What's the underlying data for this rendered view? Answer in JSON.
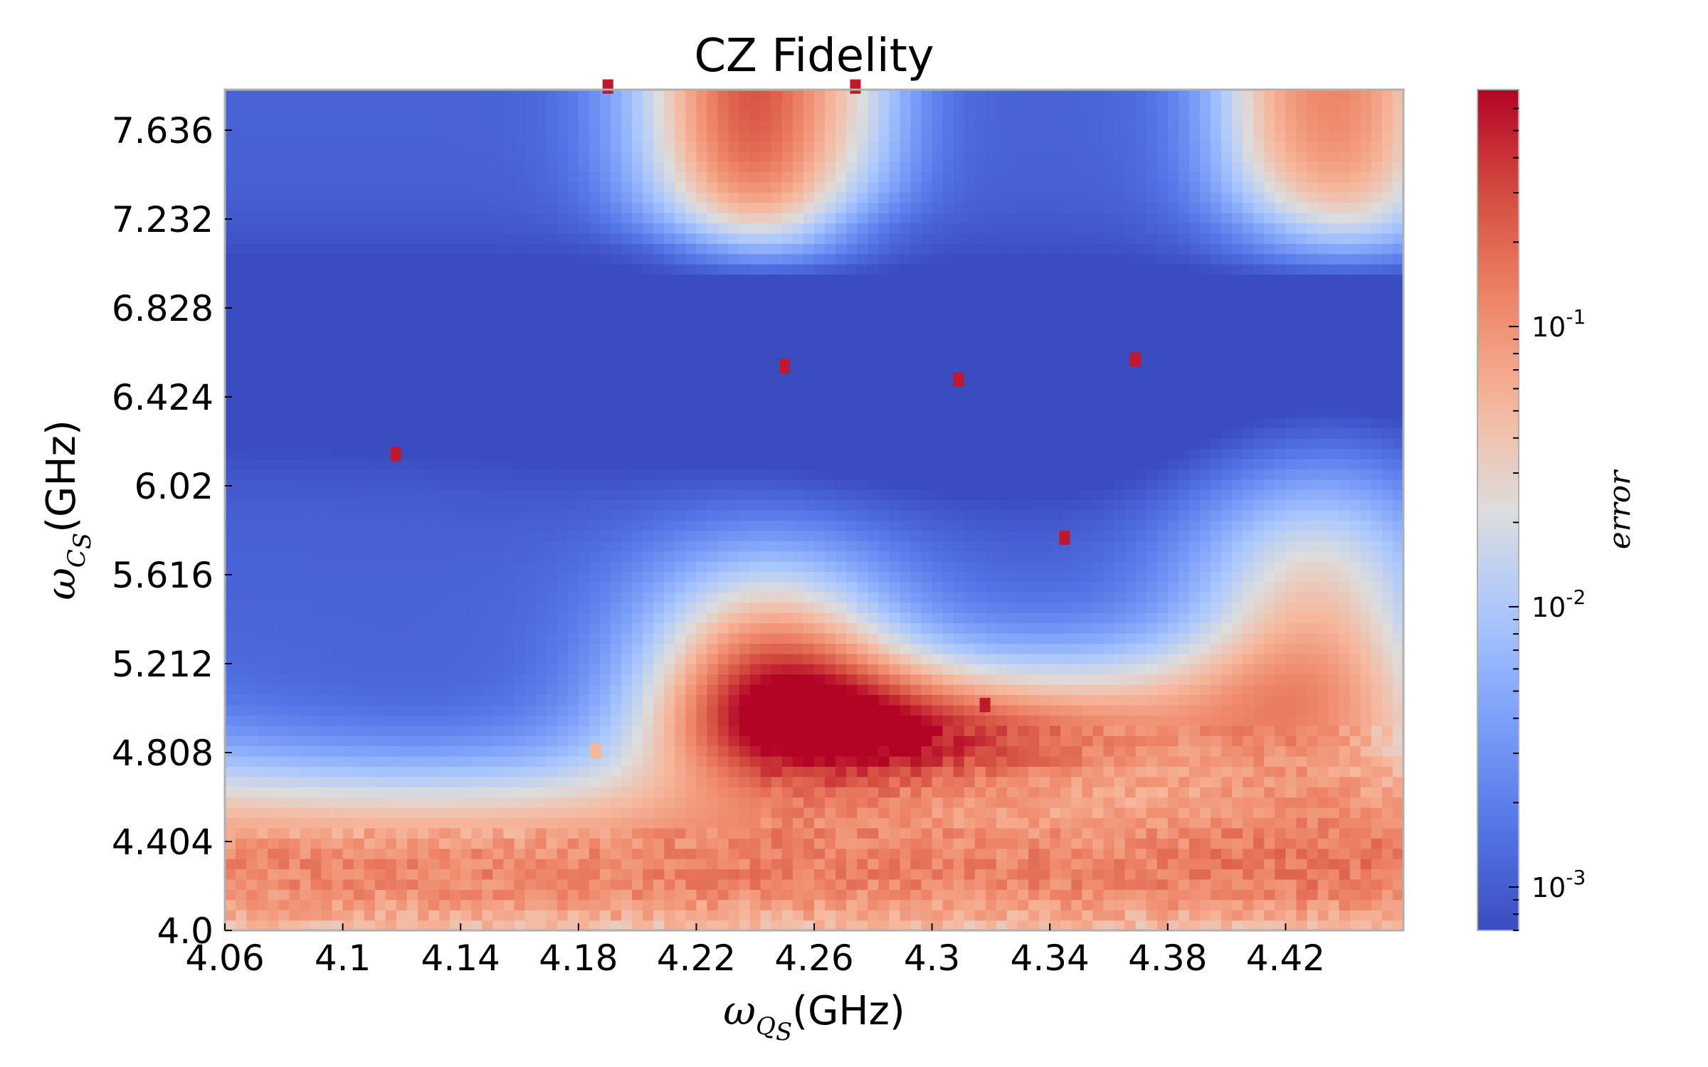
{
  "chart_data": {
    "type": "heatmap",
    "title": "CZ Fidelity",
    "xlabel": {
      "symbol": "ω",
      "sub": "Q",
      "subsub": "S",
      "unit": "(GHz)"
    },
    "ylabel": {
      "symbol": "ω",
      "sub": "C",
      "subsub": "S",
      "unit": "(GHz)"
    },
    "xlim": [
      4.06,
      4.46
    ],
    "ylim": [
      4.0,
      7.82
    ],
    "x_ticks": [
      4.06,
      4.1,
      4.14,
      4.18,
      4.22,
      4.26,
      4.3,
      4.34,
      4.38,
      4.42
    ],
    "x_tick_labels": [
      "4.06",
      "4.1",
      "4.14",
      "4.18",
      "4.22",
      "4.26",
      "4.3",
      "4.34",
      "4.38",
      "4.42"
    ],
    "y_ticks": [
      4.0,
      4.404,
      4.808,
      5.212,
      5.616,
      6.02,
      6.424,
      6.828,
      7.232,
      7.636
    ],
    "y_tick_labels": [
      "4.0",
      "4.404",
      "4.808",
      "5.212",
      "5.616",
      "6.02",
      "6.424",
      "6.828",
      "7.232",
      "7.636"
    ],
    "colorbar": {
      "label": "error",
      "scale": "log",
      "range": [
        0.0007,
        0.7
      ],
      "ticks": [
        0.001,
        0.01,
        0.1
      ],
      "tick_labels": [
        {
          "base": "10",
          "exp": "-3"
        },
        {
          "base": "10",
          "exp": "-2"
        },
        {
          "base": "10",
          "exp": "-1"
        }
      ],
      "colormap": "coolwarm",
      "colors": [
        "#3b4cc0",
        "#6688ee",
        "#9abbff",
        "#c9d7f0",
        "#edd1c2",
        "#f7a889",
        "#e36a53",
        "#b40426"
      ]
    },
    "grid": false,
    "outliers": [
      {
        "x": 4.19,
        "y": 7.82
      },
      {
        "x": 4.274,
        "y": 7.82
      },
      {
        "x": 4.118,
        "y": 6.15
      },
      {
        "x": 4.25,
        "y": 6.55
      },
      {
        "x": 4.309,
        "y": 6.49
      },
      {
        "x": 4.369,
        "y": 6.58
      },
      {
        "x": 4.345,
        "y": 5.77
      },
      {
        "x": 4.186,
        "y": 4.8
      },
      {
        "x": 4.318,
        "y": 5.01
      }
    ]
  }
}
